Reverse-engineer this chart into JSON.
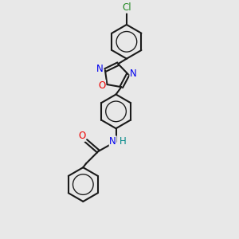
{
  "background_color": "#e8e8e8",
  "bond_color": "#1a1a1a",
  "bond_width": 1.5,
  "atom_colors": {
    "N": "#0000ee",
    "O": "#ee0000",
    "H": "#008888",
    "Cl": "#228822",
    "C": "#1a1a1a"
  },
  "font_size": 8.5,
  "fig_w": 3.0,
  "fig_h": 3.0,
  "dpi": 100
}
